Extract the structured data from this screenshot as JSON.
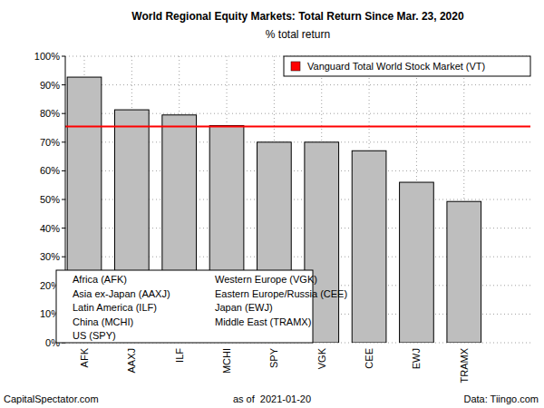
{
  "chart_data": {
    "type": "bar",
    "title": "World Regional Equity Markets: Total Return Since Mar. 23, 2020",
    "subtitle": "% total return",
    "categories": [
      "AFK",
      "AAXJ",
      "ILF",
      "MCHI",
      "SPY",
      "VGK",
      "CEE",
      "EWJ",
      "TRAMX"
    ],
    "values": [
      92.7,
      81.3,
      79.5,
      75.8,
      70.0,
      70.0,
      67.0,
      56.0,
      49.3
    ],
    "color": "#bebebe",
    "ylim": [
      0,
      100
    ],
    "yticks": [
      {
        "value": 0,
        "label": "0%"
      },
      {
        "value": 10,
        "label": "10%"
      },
      {
        "value": 20,
        "label": "20%"
      },
      {
        "value": 30,
        "label": "30%"
      },
      {
        "value": 40,
        "label": "40%"
      },
      {
        "value": 50,
        "label": "50%"
      },
      {
        "value": 60,
        "label": "60%"
      },
      {
        "value": 70,
        "label": "70%"
      },
      {
        "value": 80,
        "label": "80%"
      },
      {
        "value": 90,
        "label": "90%"
      },
      {
        "value": 100,
        "label": "100%"
      }
    ],
    "grid": true,
    "legend": "top-right",
    "reference_line": {
      "name": "Vanguard Total World Stock Market (VT)",
      "value": 75.5,
      "color": "#ff0000"
    },
    "annotations": [
      "Africa (AFK)",
      "Asia ex-Japan (AAXJ)",
      "Latin America (ILF)",
      "China (MCHI)",
      "US (SPY)",
      "Western Europe (VGK)",
      "Eastern Europe/Russia (CEE)",
      "Japan (EWJ)",
      "Middle East (TRAMX)"
    ],
    "credit": "CapitalSpectator.com",
    "date_note": "as of  2021-01-20",
    "source": "Data: Tiingo.com"
  }
}
